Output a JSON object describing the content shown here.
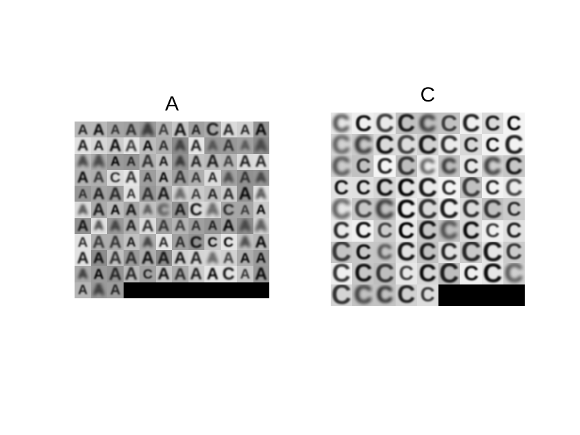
{
  "panels": [
    {
      "id": "A",
      "title": "A",
      "glyph": "A",
      "alt_glyph": "C",
      "cols": 12,
      "rows": 11,
      "count": 123
    },
    {
      "id": "C",
      "title": "C",
      "glyph": "C",
      "alt_glyph": "A",
      "cols": 9,
      "rows": 9,
      "count": 77
    }
  ]
}
